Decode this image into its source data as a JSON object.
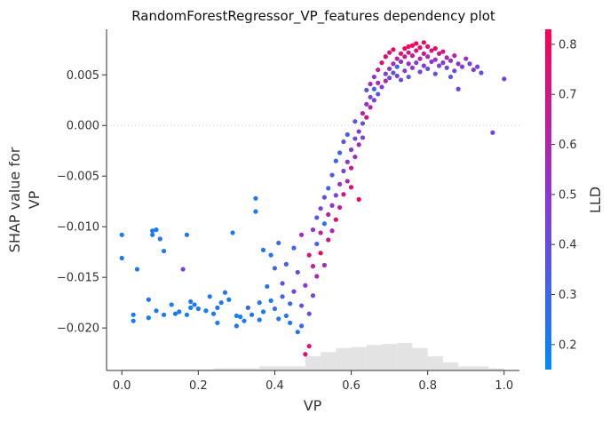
{
  "chart_data": {
    "type": "scatter",
    "title": "RandomForestRegressor_VP_features dependency plot",
    "xlabel": "VP",
    "ylabel_lines": [
      "SHAP value for",
      "VP"
    ],
    "colorbar_label": "LLD",
    "xlim": [
      -0.04,
      1.04
    ],
    "ylim": [
      -0.0242,
      0.0095
    ],
    "x_ticks": [
      0.0,
      0.2,
      0.4,
      0.6,
      0.8,
      1.0
    ],
    "x_tick_labels": [
      "0.0",
      "0.2",
      "0.4",
      "0.6",
      "0.8",
      "1.0"
    ],
    "y_ticks": [
      0.005,
      0.0,
      -0.005,
      -0.01,
      -0.015,
      -0.02
    ],
    "y_tick_labels": [
      "0.005",
      "0.000",
      "−0.005",
      "−0.010",
      "−0.015",
      "−0.020"
    ],
    "colorbar_range": [
      0.15,
      0.83
    ],
    "colorbar_ticks": [
      0.2,
      0.3,
      0.4,
      0.5,
      0.6,
      0.7,
      0.8
    ],
    "colorbar_tick_labels": [
      "0.2",
      "0.3",
      "0.4",
      "0.5",
      "0.6",
      "0.7",
      "0.8"
    ],
    "colors": {
      "low": "#008afb",
      "mid": "#8a37d6",
      "high": "#ff0052",
      "histogram": "#e3e3e3",
      "zero_line": "#cccccc"
    },
    "histogram": {
      "bin_start": 0.0,
      "bin_width": 0.04,
      "counts": [
        1,
        1,
        1,
        1,
        1,
        1,
        2,
        2,
        2,
        4,
        4,
        4,
        14,
        18,
        22,
        23,
        25,
        26,
        27,
        22,
        14,
        8,
        4,
        4,
        2
      ]
    },
    "points": [
      [
        0.0,
        -0.0108,
        0.2
      ],
      [
        0.0,
        -0.0131,
        0.21
      ],
      [
        0.03,
        -0.0187,
        0.22
      ],
      [
        0.03,
        -0.0193,
        0.2
      ],
      [
        0.04,
        -0.0142,
        0.21
      ],
      [
        0.07,
        -0.0172,
        0.23
      ],
      [
        0.07,
        -0.019,
        0.2
      ],
      [
        0.08,
        -0.0104,
        0.22
      ],
      [
        0.08,
        -0.0108,
        0.23
      ],
      [
        0.09,
        -0.0103,
        0.2
      ],
      [
        0.1,
        -0.0112,
        0.24
      ],
      [
        0.09,
        -0.0183,
        0.21
      ],
      [
        0.11,
        -0.0187,
        0.22
      ],
      [
        0.11,
        -0.0124,
        0.25
      ],
      [
        0.13,
        -0.0177,
        0.2
      ],
      [
        0.14,
        -0.0186,
        0.23
      ],
      [
        0.15,
        -0.0184,
        0.22
      ],
      [
        0.17,
        -0.0108,
        0.21
      ],
      [
        0.16,
        -0.0142,
        0.45
      ],
      [
        0.17,
        -0.0187,
        0.2
      ],
      [
        0.18,
        -0.0174,
        0.22
      ],
      [
        0.18,
        -0.018,
        0.21
      ],
      [
        0.19,
        -0.0177,
        0.22
      ],
      [
        0.2,
        -0.0181,
        0.23
      ],
      [
        0.22,
        -0.0183,
        0.2
      ],
      [
        0.23,
        -0.0169,
        0.22
      ],
      [
        0.24,
        -0.0186,
        0.21
      ],
      [
        0.25,
        -0.018,
        0.24
      ],
      [
        0.25,
        -0.0195,
        0.2
      ],
      [
        0.26,
        -0.0175,
        0.22
      ],
      [
        0.27,
        -0.0165,
        0.25
      ],
      [
        0.28,
        -0.0172,
        0.21
      ],
      [
        0.29,
        -0.0106,
        0.22
      ],
      [
        0.3,
        -0.0188,
        0.2
      ],
      [
        0.3,
        -0.0198,
        0.23
      ],
      [
        0.31,
        -0.0189,
        0.21
      ],
      [
        0.32,
        -0.0193,
        0.22
      ],
      [
        0.33,
        -0.018,
        0.3
      ],
      [
        0.34,
        -0.0187,
        0.23
      ],
      [
        0.35,
        -0.0072,
        0.22
      ],
      [
        0.35,
        -0.0085,
        0.21
      ],
      [
        0.36,
        -0.0175,
        0.24
      ],
      [
        0.36,
        -0.0192,
        0.22
      ],
      [
        0.37,
        -0.0123,
        0.25
      ],
      [
        0.37,
        -0.0184,
        0.2
      ],
      [
        0.38,
        -0.0159,
        0.23
      ],
      [
        0.39,
        -0.0128,
        0.24
      ],
      [
        0.39,
        -0.0173,
        0.22
      ],
      [
        0.4,
        -0.0141,
        0.3
      ],
      [
        0.4,
        -0.0181,
        0.26
      ],
      [
        0.41,
        -0.0116,
        0.28
      ],
      [
        0.41,
        -0.0191,
        0.22
      ],
      [
        0.42,
        -0.0156,
        0.38
      ],
      [
        0.42,
        -0.0169,
        0.32
      ],
      [
        0.43,
        -0.0188,
        0.25
      ],
      [
        0.43,
        -0.0137,
        0.34
      ],
      [
        0.44,
        -0.0195,
        0.23
      ],
      [
        0.44,
        -0.0176,
        0.28
      ],
      [
        0.45,
        -0.0164,
        0.45
      ],
      [
        0.45,
        -0.0121,
        0.3
      ],
      [
        0.46,
        -0.0204,
        0.22
      ],
      [
        0.46,
        -0.0145,
        0.42
      ],
      [
        0.47,
        -0.0178,
        0.38
      ],
      [
        0.47,
        -0.0108,
        0.55
      ],
      [
        0.47,
        -0.0198,
        0.28
      ],
      [
        0.48,
        -0.0158,
        0.5
      ],
      [
        0.48,
        -0.0226,
        0.75
      ],
      [
        0.49,
        -0.0128,
        0.7
      ],
      [
        0.49,
        -0.0186,
        0.42
      ],
      [
        0.49,
        -0.0218,
        0.72
      ],
      [
        0.5,
        -0.0139,
        0.62
      ],
      [
        0.5,
        -0.0103,
        0.48
      ],
      [
        0.5,
        -0.0168,
        0.4
      ],
      [
        0.51,
        -0.0117,
        0.3
      ],
      [
        0.51,
        -0.0091,
        0.35
      ],
      [
        0.51,
        -0.0149,
        0.58
      ],
      [
        0.52,
        -0.0082,
        0.45
      ],
      [
        0.52,
        -0.0126,
        0.78
      ],
      [
        0.52,
        -0.0106,
        0.62
      ],
      [
        0.53,
        -0.0097,
        0.25
      ],
      [
        0.53,
        -0.0071,
        0.4
      ],
      [
        0.53,
        -0.0138,
        0.55
      ],
      [
        0.54,
        -0.0088,
        0.62
      ],
      [
        0.54,
        -0.0113,
        0.7
      ],
      [
        0.54,
        -0.0062,
        0.3
      ],
      [
        0.55,
        -0.0079,
        0.5
      ],
      [
        0.55,
        -0.0104,
        0.58
      ],
      [
        0.55,
        -0.0049,
        0.35
      ],
      [
        0.56,
        -0.0093,
        0.75
      ],
      [
        0.56,
        -0.0069,
        0.42
      ],
      [
        0.56,
        -0.0035,
        0.28
      ],
      [
        0.57,
        -0.0058,
        0.55
      ],
      [
        0.57,
        -0.0081,
        0.65
      ],
      [
        0.57,
        -0.0027,
        0.3
      ],
      [
        0.58,
        -0.0045,
        0.45
      ],
      [
        0.58,
        -0.0068,
        0.7
      ],
      [
        0.58,
        -0.0016,
        0.38
      ],
      [
        0.59,
        -0.0036,
        0.5
      ],
      [
        0.59,
        -0.0055,
        0.6
      ],
      [
        0.59,
        -0.0009,
        0.32
      ],
      [
        0.6,
        -0.0024,
        0.48
      ],
      [
        0.6,
        -0.0042,
        0.68
      ],
      [
        0.6,
        -0.0061,
        0.72
      ],
      [
        0.61,
        -0.0013,
        0.42
      ],
      [
        0.61,
        -0.0031,
        0.55
      ],
      [
        0.61,
        0.0004,
        0.36
      ],
      [
        0.62,
        -0.0019,
        0.58
      ],
      [
        0.62,
        -0.0006,
        0.5
      ],
      [
        0.62,
        -0.0073,
        0.8
      ],
      [
        0.63,
        0.0002,
        0.4
      ],
      [
        0.63,
        0.0012,
        0.62
      ],
      [
        0.63,
        -0.0012,
        0.45
      ],
      [
        0.64,
        0.0021,
        0.52
      ],
      [
        0.64,
        0.0008,
        0.7
      ],
      [
        0.64,
        0.0035,
        0.38
      ],
      [
        0.65,
        0.0028,
        0.45
      ],
      [
        0.65,
        0.0041,
        0.58
      ],
      [
        0.65,
        0.0018,
        0.62
      ],
      [
        0.66,
        0.0036,
        0.3
      ],
      [
        0.66,
        0.0048,
        0.5
      ],
      [
        0.66,
        0.0025,
        0.42
      ],
      [
        0.67,
        0.0042,
        0.55
      ],
      [
        0.67,
        0.0031,
        0.35
      ],
      [
        0.67,
        0.0055,
        0.66
      ],
      [
        0.68,
        0.0038,
        0.48
      ],
      [
        0.68,
        0.0062,
        0.72
      ],
      [
        0.69,
        0.0051,
        0.45
      ],
      [
        0.69,
        0.0044,
        0.6
      ],
      [
        0.69,
        0.0068,
        0.78
      ],
      [
        0.7,
        0.0056,
        0.5
      ],
      [
        0.7,
        0.0047,
        0.42
      ],
      [
        0.7,
        0.0072,
        0.7
      ],
      [
        0.71,
        0.0061,
        0.55
      ],
      [
        0.71,
        0.0052,
        0.38
      ],
      [
        0.71,
        0.0075,
        0.8
      ],
      [
        0.72,
        0.0066,
        0.62
      ],
      [
        0.72,
        0.0049,
        0.45
      ],
      [
        0.72,
        0.0058,
        0.3
      ],
      [
        0.73,
        0.0071,
        0.75
      ],
      [
        0.73,
        0.0063,
        0.5
      ],
      [
        0.73,
        0.0045,
        0.4
      ],
      [
        0.74,
        0.0076,
        0.82
      ],
      [
        0.74,
        0.0068,
        0.65
      ],
      [
        0.74,
        0.0054,
        0.48
      ],
      [
        0.75,
        0.0078,
        0.78
      ],
      [
        0.75,
        0.0072,
        0.7
      ],
      [
        0.75,
        0.0061,
        0.55
      ],
      [
        0.75,
        0.0048,
        0.35
      ],
      [
        0.76,
        0.0079,
        0.8
      ],
      [
        0.76,
        0.0069,
        0.68
      ],
      [
        0.76,
        0.0057,
        0.5
      ],
      [
        0.77,
        0.0081,
        0.82
      ],
      [
        0.77,
        0.0074,
        0.72
      ],
      [
        0.77,
        0.0062,
        0.45
      ],
      [
        0.78,
        0.0077,
        0.78
      ],
      [
        0.78,
        0.0066,
        0.6
      ],
      [
        0.78,
        0.0053,
        0.42
      ],
      [
        0.79,
        0.0082,
        0.8
      ],
      [
        0.79,
        0.0071,
        0.65
      ],
      [
        0.79,
        0.0059,
        0.48
      ],
      [
        0.8,
        0.0078,
        0.75
      ],
      [
        0.8,
        0.0068,
        0.58
      ],
      [
        0.8,
        0.0056,
        0.4
      ],
      [
        0.81,
        0.0074,
        0.72
      ],
      [
        0.81,
        0.0063,
        0.5
      ],
      [
        0.82,
        0.0076,
        0.78
      ],
      [
        0.82,
        0.0065,
        0.55
      ],
      [
        0.82,
        0.0051,
        0.38
      ],
      [
        0.83,
        0.0071,
        0.68
      ],
      [
        0.83,
        0.0059,
        0.45
      ],
      [
        0.84,
        0.0073,
        0.7
      ],
      [
        0.84,
        0.0062,
        0.5
      ],
      [
        0.85,
        0.0067,
        0.6
      ],
      [
        0.85,
        0.0057,
        0.42
      ],
      [
        0.86,
        0.0064,
        0.55
      ],
      [
        0.86,
        0.0048,
        0.35
      ],
      [
        0.87,
        0.0069,
        0.62
      ],
      [
        0.87,
        0.0054,
        0.4
      ],
      [
        0.88,
        0.0061,
        0.5
      ],
      [
        0.88,
        0.0036,
        0.45
      ],
      [
        0.89,
        0.0058,
        0.48
      ],
      [
        0.9,
        0.0066,
        0.55
      ],
      [
        0.91,
        0.0061,
        0.42
      ],
      [
        0.92,
        0.0055,
        0.5
      ],
      [
        0.93,
        0.0058,
        0.45
      ],
      [
        0.94,
        0.0052,
        0.4
      ],
      [
        1.0,
        0.0046,
        0.45
      ],
      [
        0.97,
        -0.0007,
        0.42
      ]
    ]
  }
}
